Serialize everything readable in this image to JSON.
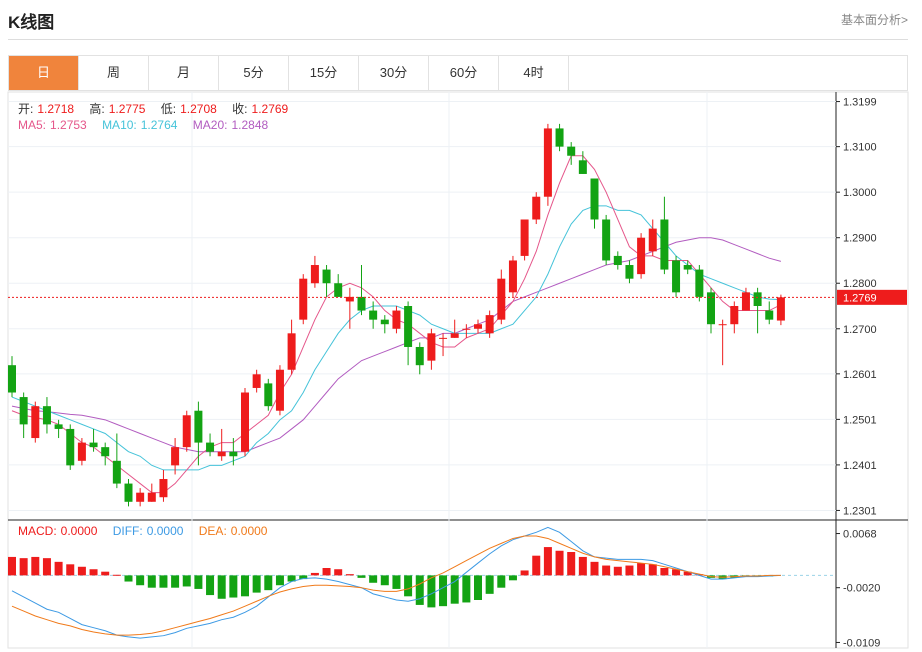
{
  "header": {
    "title": "K线图",
    "link": "基本面分析>"
  },
  "tabs": [
    {
      "label": "日",
      "active": true
    },
    {
      "label": "周"
    },
    {
      "label": "月"
    },
    {
      "label": "5分"
    },
    {
      "label": "15分"
    },
    {
      "label": "30分"
    },
    {
      "label": "60分"
    },
    {
      "label": "4时"
    }
  ],
  "ohlc": {
    "open_label": "开:",
    "open": "1.2718",
    "high_label": "高:",
    "high": "1.2775",
    "low_label": "低:",
    "low": "1.2708",
    "close_label": "收:",
    "close": "1.2769"
  },
  "ma": {
    "ma5_label": "MA5:",
    "ma5": "1.2753",
    "ma10_label": "MA10:",
    "ma10": "1.2764",
    "ma20_label": "MA20:",
    "ma20": "1.2848"
  },
  "macd": {
    "macd_label": "MACD:",
    "macd": "0.0000",
    "diff_label": "DIFF:",
    "diff": "0.0000",
    "dea_label": "DEA:",
    "dea": "0.0000"
  },
  "colors": {
    "up": "#ee1c1c",
    "down": "#13a313",
    "ma5": "#e5568a",
    "ma10": "#45c3d9",
    "ma20": "#b25cc0",
    "diff": "#3d9ae4",
    "dea": "#f07a1a",
    "last": "#ee1c1c"
  },
  "chart_data": [
    {
      "type": "candlestick",
      "y_ticks": [
        "1.3199",
        "1.3100",
        "1.3000",
        "1.2900",
        "1.2800",
        "1.2700",
        "1.2601",
        "1.2501",
        "1.2401",
        "1.2301"
      ],
      "ylim": [
        1.228,
        1.322
      ],
      "last_price": "1.2769",
      "candles": [
        [
          1.262,
          1.256,
          1.264,
          1.255
        ],
        [
          1.255,
          1.249,
          1.256,
          1.246
        ],
        [
          1.246,
          1.253,
          1.254,
          1.245
        ],
        [
          1.253,
          1.249,
          1.255,
          1.247
        ],
        [
          1.249,
          1.248,
          1.25,
          1.246
        ],
        [
          1.248,
          1.24,
          1.249,
          1.239
        ],
        [
          1.241,
          1.245,
          1.246,
          1.24
        ],
        [
          1.245,
          1.244,
          1.248,
          1.243
        ],
        [
          1.244,
          1.242,
          1.245,
          1.24
        ],
        [
          1.241,
          1.236,
          1.247,
          1.235
        ],
        [
          1.236,
          1.232,
          1.237,
          1.231
        ],
        [
          1.232,
          1.234,
          1.235,
          1.231
        ],
        [
          1.232,
          1.234,
          1.236,
          1.232
        ],
        [
          1.233,
          1.237,
          1.239,
          1.232
        ],
        [
          1.24,
          1.244,
          1.246,
          1.238
        ],
        [
          1.244,
          1.251,
          1.252,
          1.243
        ],
        [
          1.252,
          1.245,
          1.254,
          1.24
        ],
        [
          1.245,
          1.243,
          1.247,
          1.242
        ],
        [
          1.242,
          1.243,
          1.248,
          1.241
        ],
        [
          1.243,
          1.242,
          1.246,
          1.24
        ],
        [
          1.243,
          1.256,
          1.257,
          1.242
        ],
        [
          1.257,
          1.26,
          1.261,
          1.256
        ],
        [
          1.258,
          1.253,
          1.259,
          1.252
        ],
        [
          1.252,
          1.261,
          1.262,
          1.251
        ],
        [
          1.261,
          1.269,
          1.272,
          1.26
        ],
        [
          1.272,
          1.281,
          1.282,
          1.271
        ],
        [
          1.28,
          1.284,
          1.286,
          1.279
        ],
        [
          1.283,
          1.28,
          1.284,
          1.277
        ],
        [
          1.28,
          1.277,
          1.282,
          1.277
        ],
        [
          1.276,
          1.277,
          1.279,
          1.27
        ],
        [
          1.277,
          1.274,
          1.284,
          1.273
        ],
        [
          1.274,
          1.272,
          1.276,
          1.27
        ],
        [
          1.272,
          1.271,
          1.273,
          1.269
        ],
        [
          1.27,
          1.274,
          1.275,
          1.269
        ],
        [
          1.275,
          1.266,
          1.276,
          1.262
        ],
        [
          1.266,
          1.262,
          1.267,
          1.26
        ],
        [
          1.263,
          1.269,
          1.27,
          1.261
        ],
        [
          1.268,
          1.268,
          1.269,
          1.264
        ],
        [
          1.268,
          1.269,
          1.272,
          1.268
        ],
        [
          1.27,
          1.27,
          1.271,
          1.268
        ],
        [
          1.27,
          1.271,
          1.272,
          1.269
        ],
        [
          1.269,
          1.273,
          1.274,
          1.268
        ],
        [
          1.272,
          1.281,
          1.283,
          1.271
        ],
        [
          1.278,
          1.285,
          1.286,
          1.277
        ],
        [
          1.286,
          1.294,
          1.294,
          1.285
        ],
        [
          1.294,
          1.299,
          1.3,
          1.293
        ],
        [
          1.299,
          1.314,
          1.315,
          1.297
        ],
        [
          1.314,
          1.31,
          1.315,
          1.309
        ],
        [
          1.31,
          1.308,
          1.311,
          1.306
        ],
        [
          1.307,
          1.304,
          1.309,
          1.304
        ],
        [
          1.303,
          1.294,
          1.303,
          1.292
        ],
        [
          1.294,
          1.285,
          1.295,
          1.284
        ],
        [
          1.286,
          1.284,
          1.287,
          1.283
        ],
        [
          1.284,
          1.281,
          1.285,
          1.28
        ],
        [
          1.282,
          1.29,
          1.291,
          1.281
        ],
        [
          1.287,
          1.292,
          1.294,
          1.286
        ],
        [
          1.294,
          1.283,
          1.299,
          1.282
        ],
        [
          1.285,
          1.278,
          1.286,
          1.277
        ],
        [
          1.284,
          1.283,
          1.285,
          1.282
        ],
        [
          1.283,
          1.277,
          1.284,
          1.276
        ],
        [
          1.278,
          1.271,
          1.279,
          1.269
        ],
        [
          1.271,
          1.271,
          1.272,
          1.262
        ],
        [
          1.271,
          1.275,
          1.276,
          1.269
        ],
        [
          1.274,
          1.278,
          1.279,
          1.274
        ],
        [
          1.278,
          1.275,
          1.279,
          1.269
        ],
        [
          1.274,
          1.272,
          1.276,
          1.271
        ],
        [
          1.2718,
          1.2769,
          1.2775,
          1.2708
        ]
      ],
      "ma5": [
        1.252,
        1.251,
        1.2505,
        1.25,
        1.249,
        1.247,
        1.245,
        1.244,
        1.242,
        1.24,
        1.238,
        1.236,
        1.234,
        1.234,
        1.236,
        1.239,
        1.242,
        1.244,
        1.245,
        1.245,
        1.247,
        1.249,
        1.251,
        1.256,
        1.26,
        1.266,
        1.272,
        1.277,
        1.279,
        1.28,
        1.279,
        1.277,
        1.274,
        1.272,
        1.271,
        1.269,
        1.267,
        1.266,
        1.266,
        1.268,
        1.269,
        1.27,
        1.273,
        1.276,
        1.281,
        1.287,
        1.295,
        1.302,
        1.308,
        1.308,
        1.305,
        1.3,
        1.294,
        1.288,
        1.286,
        1.286,
        1.285,
        1.285,
        1.285,
        1.282,
        1.279,
        1.276,
        1.274,
        1.274,
        1.274,
        1.274,
        1.2753
      ],
      "ma10": [
        1.255,
        1.254,
        1.253,
        1.252,
        1.251,
        1.25,
        1.249,
        1.248,
        1.247,
        1.245,
        1.243,
        1.242,
        1.24,
        1.239,
        1.239,
        1.239,
        1.239,
        1.24,
        1.24,
        1.241,
        1.242,
        1.245,
        1.247,
        1.25,
        1.252,
        1.256,
        1.261,
        1.265,
        1.269,
        1.272,
        1.274,
        1.275,
        1.275,
        1.275,
        1.274,
        1.273,
        1.271,
        1.27,
        1.269,
        1.269,
        1.269,
        1.269,
        1.27,
        1.271,
        1.274,
        1.277,
        1.282,
        1.288,
        1.293,
        1.296,
        1.297,
        1.297,
        1.296,
        1.296,
        1.295,
        1.292,
        1.289,
        1.286,
        1.284,
        1.282,
        1.281,
        1.28,
        1.279,
        1.278,
        1.277,
        1.2765,
        1.2764
      ],
      "ma20": [
        1.253,
        1.2525,
        1.252,
        1.2518,
        1.2515,
        1.2512,
        1.251,
        1.2505,
        1.25,
        1.249,
        1.248,
        1.247,
        1.246,
        1.245,
        1.244,
        1.2435,
        1.243,
        1.243,
        1.243,
        1.243,
        1.243,
        1.244,
        1.245,
        1.246,
        1.248,
        1.25,
        1.253,
        1.256,
        1.259,
        1.261,
        1.263,
        1.264,
        1.265,
        1.266,
        1.267,
        1.268,
        1.268,
        1.269,
        1.269,
        1.27,
        1.271,
        1.272,
        1.274,
        1.276,
        1.277,
        1.278,
        1.279,
        1.28,
        1.281,
        1.282,
        1.283,
        1.284,
        1.2845,
        1.285,
        1.286,
        1.287,
        1.288,
        1.289,
        1.2895,
        1.29,
        1.29,
        1.2895,
        1.2885,
        1.2875,
        1.2865,
        1.2855,
        1.2848
      ]
    },
    {
      "type": "macd",
      "y_ticks": [
        "0.0068",
        "-0.0020",
        "-0.0109"
      ],
      "ylim": [
        -0.0118,
        0.009
      ],
      "histogram": [
        0.003,
        0.0028,
        0.003,
        0.0028,
        0.0022,
        0.0018,
        0.0014,
        0.001,
        0.0006,
        0.0001,
        -0.001,
        -0.0016,
        -0.002,
        -0.002,
        -0.002,
        -0.0018,
        -0.0022,
        -0.0032,
        -0.0038,
        -0.0036,
        -0.0034,
        -0.0028,
        -0.0024,
        -0.0016,
        -0.001,
        -0.0006,
        0.0004,
        0.0012,
        0.001,
        0.0002,
        -0.0004,
        -0.0012,
        -0.0016,
        -0.0022,
        -0.0034,
        -0.0048,
        -0.0052,
        -0.005,
        -0.0046,
        -0.0044,
        -0.004,
        -0.003,
        -0.002,
        -0.0008,
        0.0008,
        0.0032,
        0.0046,
        0.004,
        0.0038,
        0.003,
        0.0022,
        0.0016,
        0.0014,
        0.0016,
        0.002,
        0.0018,
        0.0012,
        0.001,
        0.0006,
        0.0002,
        -0.0004,
        -0.0006,
        -0.0004,
        -0.0002,
        -0.0002,
        -0.0001,
        0.0
      ],
      "diff": [
        -0.0025,
        -0.0035,
        -0.0045,
        -0.0055,
        -0.006,
        -0.007,
        -0.008,
        -0.0085,
        -0.009,
        -0.0097,
        -0.01,
        -0.0102,
        -0.01,
        -0.0098,
        -0.0093,
        -0.0086,
        -0.0082,
        -0.0078,
        -0.0072,
        -0.0068,
        -0.006,
        -0.005,
        -0.0035,
        -0.002,
        -0.001,
        -0.0005,
        -0.0004,
        -0.0006,
        -0.001,
        -0.0015,
        -0.002,
        -0.003,
        -0.0035,
        -0.004,
        -0.0042,
        -0.0038,
        -0.003,
        -0.002,
        -0.001,
        0.0005,
        0.002,
        0.0035,
        0.0048,
        0.0058,
        0.0064,
        0.007,
        0.0078,
        0.007,
        0.0055,
        0.004,
        0.003,
        0.0028,
        0.0026,
        0.0026,
        0.0026,
        0.0024,
        0.0018,
        0.0012,
        0.0006,
        0.0,
        -0.0006,
        -0.0006,
        -0.0004,
        -0.0002,
        -0.0002,
        -0.0001,
        0.0
      ],
      "dea": [
        -0.005,
        -0.0058,
        -0.0066,
        -0.0072,
        -0.0078,
        -0.0082,
        -0.0088,
        -0.0092,
        -0.0095,
        -0.0097,
        -0.0097,
        -0.0096,
        -0.0094,
        -0.009,
        -0.0085,
        -0.008,
        -0.0075,
        -0.007,
        -0.0064,
        -0.0058,
        -0.005,
        -0.0042,
        -0.0034,
        -0.0027,
        -0.0022,
        -0.0018,
        -0.0016,
        -0.0016,
        -0.0017,
        -0.0018,
        -0.002,
        -0.0024,
        -0.0026,
        -0.0026,
        -0.0022,
        -0.0014,
        -0.0004,
        0.0004,
        0.0014,
        0.0024,
        0.0034,
        0.0044,
        0.0052,
        0.006,
        0.0064,
        0.0064,
        0.006,
        0.0052,
        0.0044,
        0.0036,
        0.003,
        0.0026,
        0.0024,
        0.0022,
        0.002,
        0.0018,
        0.0014,
        0.001,
        0.0006,
        0.0002,
        -0.0002,
        -0.0003,
        -0.0002,
        -0.0001,
        -0.0001,
        0.0,
        0.0
      ]
    }
  ]
}
